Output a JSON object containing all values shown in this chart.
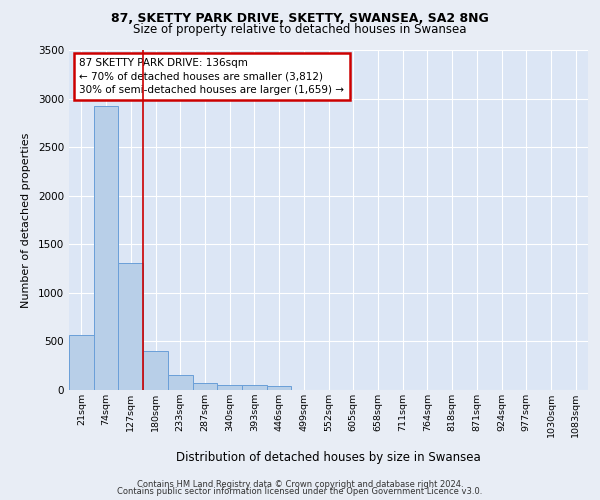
{
  "title_line1": "87, SKETTY PARK DRIVE, SKETTY, SWANSEA, SA2 8NG",
  "title_line2": "Size of property relative to detached houses in Swansea",
  "xlabel": "Distribution of detached houses by size in Swansea",
  "ylabel": "Number of detached properties",
  "bin_labels": [
    "21sqm",
    "74sqm",
    "127sqm",
    "180sqm",
    "233sqm",
    "287sqm",
    "340sqm",
    "393sqm",
    "446sqm",
    "499sqm",
    "552sqm",
    "605sqm",
    "658sqm",
    "711sqm",
    "764sqm",
    "818sqm",
    "871sqm",
    "924sqm",
    "977sqm",
    "1030sqm",
    "1083sqm"
  ],
  "bar_values": [
    570,
    2920,
    1310,
    400,
    155,
    75,
    55,
    50,
    40,
    0,
    0,
    0,
    0,
    0,
    0,
    0,
    0,
    0,
    0,
    0,
    0
  ],
  "bar_color": "#b8cfe8",
  "bar_edge_color": "#6a9fd8",
  "vline_x": 2.5,
  "annotation_text": "87 SKETTY PARK DRIVE: 136sqm\n← 70% of detached houses are smaller (3,812)\n30% of semi-detached houses are larger (1,659) →",
  "annotation_box_color": "#ffffff",
  "annotation_box_edge": "#cc0000",
  "ylim": [
    0,
    3500
  ],
  "yticks": [
    0,
    500,
    1000,
    1500,
    2000,
    2500,
    3000,
    3500
  ],
  "bg_color": "#e8edf5",
  "plot_bg_color": "#dce6f5",
  "footer_line1": "Contains HM Land Registry data © Crown copyright and database right 2024.",
  "footer_line2": "Contains public sector information licensed under the Open Government Licence v3.0."
}
